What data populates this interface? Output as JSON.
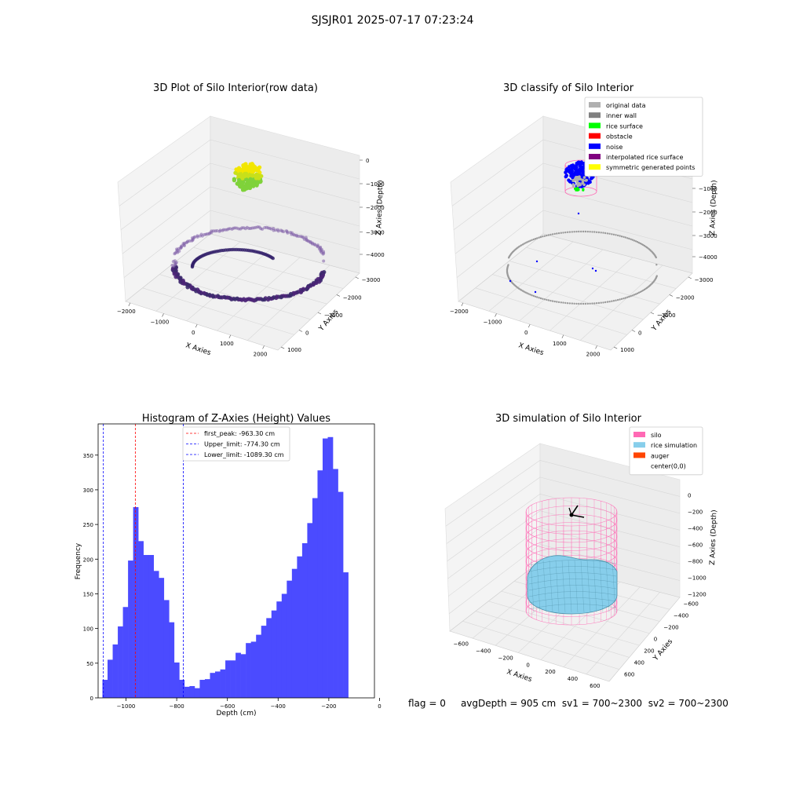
{
  "suptitle": "SJSJR01 2025-07-17 07:23:24",
  "status": {
    "flag": "flag = 0",
    "avg_depth": "avgDepth = 905 cm",
    "sv1": "sv1 = 700~2300",
    "sv2": "sv2 = 700~2300"
  },
  "panels": {
    "raw": {
      "title": "3D Plot of Silo Interior(row data)",
      "xlabel": "X Axies",
      "ylabel": "Y Axies",
      "zlabel": "Z Axies (Depth)",
      "xticks": [
        "−2000",
        "−1000",
        "0",
        "1000",
        "2000"
      ],
      "yticks": [
        "−3000",
        "−2000",
        "−1000",
        "0",
        "1000"
      ],
      "zticks": [
        "0",
        "−1000",
        "−2000",
        "−3000",
        "−4000"
      ]
    },
    "classify": {
      "title": "3D classify of Silo Interior",
      "xlabel": "X Axies",
      "ylabel": "Y Axies",
      "zlabel": "Z Axies (Depth)",
      "xticks": [
        "−2000",
        "−1000",
        "0",
        "1000",
        "2000"
      ],
      "yticks": [
        "−3000",
        "−2000",
        "−1000",
        "0",
        "1000"
      ],
      "zticks": [
        "0",
        "−1000",
        "−2000",
        "−3000",
        "−4000"
      ],
      "legend": [
        {
          "label": "original data",
          "color": "#b0b0b0"
        },
        {
          "label": "inner wall",
          "color": "#808080"
        },
        {
          "label": "rice surface",
          "color": "#00ff00"
        },
        {
          "label": "obstacle",
          "color": "#ff0000"
        },
        {
          "label": "noise",
          "color": "#0000ff"
        },
        {
          "label": "interpolated rice surface",
          "color": "#800080"
        },
        {
          "label": "symmetric generated points",
          "color": "#ffff00"
        }
      ]
    },
    "simulation": {
      "title": "3D simulation of Silo Interior",
      "xlabel": "X Axies",
      "ylabel": "Y Axies",
      "zlabel": "Z Axies (Depth)",
      "xticks": [
        "−600",
        "−400",
        "−200",
        "0",
        "200",
        "400",
        "600"
      ],
      "yticks": [
        "−600",
        "−400",
        "−200",
        "0",
        "200",
        "400",
        "600"
      ],
      "zticks": [
        "0",
        "−200",
        "−400",
        "−600",
        "−800",
        "−1000",
        "−1200"
      ],
      "legend": [
        {
          "label": "silo",
          "color": "#ff69b4"
        },
        {
          "label": "rice simulation",
          "color": "#87ceeb"
        },
        {
          "label": "auger",
          "color": "#ff4500"
        },
        {
          "label": "center(0,0)",
          "color": ""
        }
      ]
    }
  },
  "chart_data": {
    "type": "bar",
    "title": "Histogram of Z-Axies (Height) Values",
    "xlabel": "Depth (cm)",
    "ylabel": "Frequency",
    "xlim": [
      -1110,
      -20
    ],
    "ylim": [
      0,
      395
    ],
    "bar_color": "#4b4bff",
    "xticks": [
      -1000,
      -800,
      -600,
      -400,
      -200,
      0
    ],
    "xtick_labels": [
      "−1000",
      "−800",
      "−600",
      "−400",
      "−200",
      "0"
    ],
    "yticks": [
      0,
      50,
      100,
      150,
      200,
      250,
      300,
      350
    ],
    "bin_width": 20.2,
    "bin_start": -1093,
    "counts": [
      26,
      55,
      77,
      103,
      131,
      198,
      275,
      226,
      206,
      206,
      183,
      173,
      141,
      109,
      51,
      26,
      16,
      17,
      14,
      26,
      27,
      36,
      38,
      41,
      54,
      54,
      65,
      63,
      79,
      81,
      91,
      104,
      115,
      126,
      139,
      150,
      169,
      186,
      204,
      223,
      252,
      288,
      328,
      374,
      376,
      330,
      297,
      181
    ],
    "vlines": [
      {
        "label": "first_peak: -963.30 cm",
        "x": -963.3,
        "color": "#ff0000"
      },
      {
        "label": "Upper_limit: -774.30 cm",
        "x": -774.3,
        "color": "#0000ff"
      },
      {
        "label": "Lower_limit: -1089.30 cm",
        "x": -1089.3,
        "color": "#0000ff"
      }
    ]
  }
}
